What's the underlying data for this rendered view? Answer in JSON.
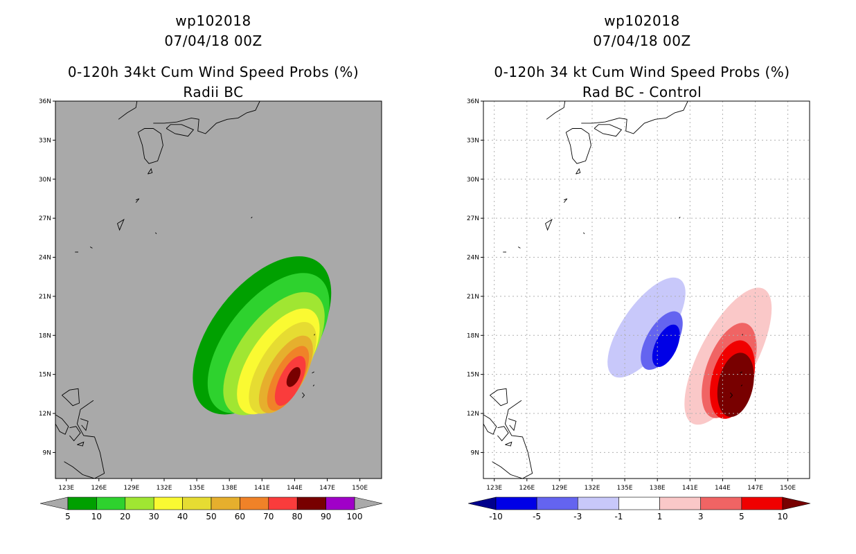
{
  "chart_data": [
    {
      "type": "heatmap",
      "storm": "wp102018",
      "date": "07/04/18 00Z",
      "title": "0-120h 34kt Cum Wind Speed Probs (%)",
      "subtitle": "Radii BC",
      "x_ticks": [
        "123E",
        "126E",
        "129E",
        "132E",
        "135E",
        "138E",
        "141E",
        "144E",
        "147E",
        "150E"
      ],
      "y_ticks": [
        "9N",
        "12N",
        "15N",
        "18N",
        "21N",
        "24N",
        "27N",
        "30N",
        "33N",
        "36N"
      ],
      "xlim": [
        122,
        152
      ],
      "ylim": [
        7,
        36
      ],
      "grid": false,
      "colorbar": {
        "labels": [
          "5",
          "10",
          "20",
          "30",
          "40",
          "50",
          "60",
          "70",
          "80",
          "90",
          "100"
        ],
        "colors": [
          "#00a000",
          "#2ed22e",
          "#a0e632",
          "#fafa32",
          "#e6dc32",
          "#e6af2d",
          "#f08228",
          "#fa3c3c",
          "#780000",
          "#a000c8"
        ]
      },
      "contours": [
        {
          "level": 5,
          "center": [
            141.0,
            18.0
          ],
          "semi_axes": [
            8.5,
            4.6
          ],
          "angle": 52
        },
        {
          "level": 10,
          "center": [
            141.6,
            17.4
          ],
          "semi_axes": [
            7.6,
            3.9
          ],
          "angle": 52
        },
        {
          "level": 20,
          "center": [
            142.1,
            16.6
          ],
          "semi_axes": [
            6.6,
            3.2
          ],
          "angle": 54
        },
        {
          "level": 30,
          "center": [
            142.5,
            16.0
          ],
          "semi_axes": [
            5.6,
            2.6
          ],
          "angle": 56
        },
        {
          "level": 40,
          "center": [
            142.9,
            15.5
          ],
          "semi_axes": [
            4.8,
            2.1
          ],
          "angle": 58
        },
        {
          "level": 50,
          "center": [
            143.2,
            15.0
          ],
          "semi_axes": [
            4.0,
            1.7
          ],
          "angle": 60
        },
        {
          "level": 60,
          "center": [
            143.4,
            14.7
          ],
          "semi_axes": [
            3.3,
            1.3
          ],
          "angle": 62
        },
        {
          "level": 70,
          "center": [
            143.6,
            14.5
          ],
          "semi_axes": [
            2.5,
            1.0
          ],
          "angle": 64
        },
        {
          "level": 80,
          "center": [
            143.9,
            14.8
          ],
          "semi_axes": [
            1.0,
            0.5
          ],
          "angle": 62
        }
      ]
    },
    {
      "type": "heatmap",
      "storm": "wp102018",
      "date": "07/04/18 00Z",
      "title": "0-120h 34 kt Cum Wind Speed Probs (%)",
      "subtitle": "Rad BC - Control",
      "x_ticks": [
        "123E",
        "126E",
        "129E",
        "132E",
        "135E",
        "138E",
        "141E",
        "144E",
        "147E",
        "150E"
      ],
      "y_ticks": [
        "9N",
        "12N",
        "15N",
        "18N",
        "21N",
        "24N",
        "27N",
        "30N",
        "33N",
        "36N"
      ],
      "xlim": [
        122,
        152
      ],
      "ylim": [
        7,
        36
      ],
      "grid": true,
      "colorbar": {
        "labels": [
          "-10",
          "-5",
          "-3",
          "-1",
          "1",
          "3",
          "5",
          "10"
        ],
        "colors": [
          "#0000e6",
          "#6464f0",
          "#c8c8fa",
          "#ffffff",
          "#fac8c8",
          "#f06464",
          "#f00000"
        ],
        "end_colors": [
          "#00008c",
          "#780000"
        ]
      },
      "contours": [
        {
          "level": -1,
          "center": [
            137.0,
            18.6
          ],
          "semi_axes": [
            5.4,
            2.2
          ],
          "angle": 55
        },
        {
          "level": -3,
          "center": [
            138.4,
            17.6
          ],
          "semi_axes": [
            3.0,
            1.4
          ],
          "angle": 60
        },
        {
          "level": -5,
          "center": [
            138.8,
            17.2
          ],
          "semi_axes": [
            2.1,
            1.0
          ],
          "angle": 65
        },
        {
          "level": 1,
          "center": [
            144.5,
            16.4
          ],
          "semi_axes": [
            7.0,
            2.6
          ],
          "angle": 62
        },
        {
          "level": 3,
          "center": [
            144.6,
            15.3
          ],
          "semi_axes": [
            4.6,
            2.1
          ],
          "angle": 70
        },
        {
          "level": 5,
          "center": [
            144.9,
            14.6
          ],
          "semi_axes": [
            3.7,
            1.9
          ],
          "angle": 75
        },
        {
          "level": 10,
          "center": [
            145.2,
            14.2
          ],
          "semi_axes": [
            3.0,
            1.6
          ],
          "angle": 78
        }
      ]
    }
  ]
}
